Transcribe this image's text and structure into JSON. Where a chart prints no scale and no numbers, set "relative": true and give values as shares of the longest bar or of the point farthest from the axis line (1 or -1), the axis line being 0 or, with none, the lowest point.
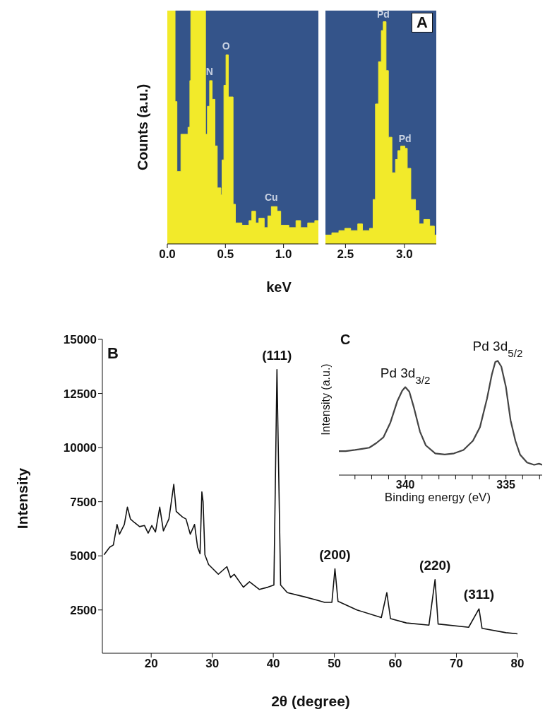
{
  "chart_data": [
    {
      "type": "area",
      "relative": true,
      "xlabel": "keV",
      "ylabel": "Counts (a.u.)",
      "xlim": [
        0,
        1.3
      ],
      "xticks": [
        {
          "value": 0,
          "label": "0.0"
        },
        {
          "value": 0.5,
          "label": "0.5"
        },
        {
          "value": 1,
          "label": "1.0"
        }
      ],
      "x": [
        0,
        0.067,
        0.067,
        0.083,
        0.083,
        0.117,
        0.117,
        0.178,
        0.178,
        0.194,
        0.194,
        0.202,
        0.202,
        0.329,
        0.329,
        0.345,
        0.345,
        0.364,
        0.364,
        0.386,
        0.386,
        0.41,
        0.41,
        0.43,
        0.43,
        0.461,
        0.461,
        0.471,
        0.471,
        0.487,
        0.487,
        0.505,
        0.505,
        0.525,
        0.525,
        0.566,
        0.566,
        0.586,
        0.586,
        0.642,
        0.642,
        0.703,
        0.703,
        0.727,
        0.727,
        0.76,
        0.76,
        0.788,
        0.788,
        0.834,
        0.834,
        0.865,
        0.865,
        0.895,
        0.895,
        0.945,
        0.945,
        0.976,
        0.976,
        1.046,
        1.046,
        1.107,
        1.107,
        1.147,
        1.147,
        1.208,
        1.208,
        1.269,
        1.269,
        1.3
      ],
      "series": [
        {
          "color": "#f2ea2a",
          "values": [
            1,
            1,
            0.61,
            0.61,
            0.31,
            0.31,
            0.47,
            0.47,
            0.5,
            0.5,
            0.7,
            0.7,
            1,
            1,
            0.47,
            0.47,
            0.59,
            0.59,
            0.7,
            0.7,
            0.62,
            0.62,
            0.42,
            0.42,
            0.24,
            0.24,
            0.21,
            0.21,
            0.36,
            0.36,
            0.68,
            0.68,
            0.81,
            0.81,
            0.63,
            0.63,
            0.17,
            0.17,
            0.09,
            0.09,
            0.08,
            0.08,
            0.1,
            0.1,
            0.14,
            0.14,
            0.09,
            0.09,
            0.11,
            0.11,
            0.07,
            0.07,
            0.12,
            0.12,
            0.16,
            0.16,
            0.14,
            0.14,
            0.08,
            0.08,
            0.07,
            0.07,
            0.1,
            0.1,
            0.07,
            0.07,
            0.09,
            0.09,
            0.1,
            0.1
          ]
        }
      ],
      "annotations": [
        {
          "text": "N",
          "x": 0.364,
          "y": 0.7
        },
        {
          "text": "O",
          "x": 0.505,
          "y": 0.81
        },
        {
          "text": "Cu",
          "x": 0.895,
          "y": 0.16
        }
      ]
    },
    {
      "type": "area",
      "relative": true,
      "xlim": [
        2.33,
        3.27
      ],
      "xticks": [
        {
          "value": 2.5,
          "label": "2.5"
        },
        {
          "value": 3,
          "label": "3.0"
        }
      ],
      "x": [
        2.33,
        2.384,
        2.384,
        2.444,
        2.444,
        2.494,
        2.494,
        2.544,
        2.544,
        2.604,
        2.604,
        2.644,
        2.644,
        2.704,
        2.704,
        2.734,
        2.734,
        2.754,
        2.754,
        2.78,
        2.78,
        2.804,
        2.804,
        2.82,
        2.82,
        2.844,
        2.844,
        2.864,
        2.864,
        2.894,
        2.894,
        2.924,
        2.924,
        2.944,
        2.944,
        2.968,
        2.968,
        3.004,
        3.004,
        3.024,
        3.024,
        3.054,
        3.054,
        3.094,
        3.094,
        3.124,
        3.124,
        3.164,
        3.164,
        3.214,
        3.214,
        3.254,
        3.254,
        3.27
      ],
      "series": [
        {
          "color": "#f2ea2a",
          "values": [
            0.04,
            0.04,
            0.05,
            0.05,
            0.06,
            0.06,
            0.07,
            0.07,
            0.06,
            0.06,
            0.09,
            0.09,
            0.06,
            0.06,
            0.07,
            0.07,
            0.2,
            0.2,
            0.63,
            0.63,
            0.82,
            0.82,
            0.96,
            0.96,
            1,
            1,
            0.78,
            0.78,
            0.48,
            0.48,
            0.32,
            0.32,
            0.38,
            0.38,
            0.42,
            0.42,
            0.44,
            0.44,
            0.43,
            0.43,
            0.34,
            0.34,
            0.2,
            0.2,
            0.15,
            0.15,
            0.09,
            0.09,
            0.11,
            0.11,
            0.08,
            0.08,
            0.04,
            0.04
          ]
        }
      ],
      "annotations": [
        "A",
        {
          "text": "Pd",
          "x": 2.82,
          "y": 1
        },
        {
          "text": "Pd",
          "x": 3.004,
          "y": 0.44
        }
      ]
    },
    {
      "type": "line",
      "xlabel": "2θ (degree)",
      "ylabel": "Intensity",
      "xlim": [
        12,
        80
      ],
      "xticks": [
        20,
        30,
        40,
        50,
        60,
        70,
        80
      ],
      "ylim": [
        500,
        15000
      ],
      "yticks": [
        2500,
        5000,
        7500,
        10000,
        12500,
        15000
      ],
      "x": [
        12.27,
        13.2,
        13.8,
        14.4,
        14.8,
        15.6,
        16.1,
        16.6,
        17.2,
        18.1,
        18.9,
        19.5,
        20.1,
        20.7,
        21.4,
        22.0,
        22.9,
        23.7,
        24.1,
        25.1,
        25.7,
        26.4,
        27.1,
        27.6,
        28.0,
        28.3,
        28.5,
        28.8,
        29.4,
        31.0,
        32.4,
        33.0,
        33.6,
        35.1,
        36.1,
        37.7,
        39.1,
        40.1,
        40.6,
        41.2,
        42.3,
        45.2,
        47.2,
        48.4,
        49.6,
        50.1,
        50.6,
        53.7,
        57.7,
        58.6,
        59.2,
        61.8,
        65.5,
        66.5,
        67.0,
        72.0,
        73.7,
        74.2,
        78.1,
        80
      ],
      "series": [
        {
          "color": "#111111",
          "values": [
            5050,
            5400,
            5500,
            6450,
            6000,
            6450,
            7250,
            6700,
            6550,
            6350,
            6400,
            6050,
            6400,
            6100,
            7250,
            6150,
            6700,
            8300,
            7050,
            6800,
            6700,
            6000,
            6450,
            5400,
            5100,
            7950,
            7500,
            5050,
            4600,
            4150,
            4500,
            4000,
            4150,
            3550,
            3800,
            3450,
            3550,
            3650,
            13600,
            3650,
            3300,
            3100,
            2950,
            2850,
            2850,
            4400,
            2900,
            2500,
            2150,
            3300,
            2100,
            1900,
            1800,
            3900,
            1850,
            1700,
            2550,
            1650,
            1450,
            1400
          ]
        }
      ],
      "annotations": [
        "B",
        {
          "text": "(111)",
          "x": 40.6,
          "y": 13600
        },
        {
          "text": "(200)",
          "x": 50.1,
          "y": 4400
        },
        {
          "text": "(220)",
          "x": 66.5,
          "y": 3900
        },
        {
          "text": "(311)",
          "x": 73.7,
          "y": 2550
        }
      ]
    },
    {
      "type": "line",
      "relative": true,
      "xlabel": "Binding energy (eV)",
      "ylabel": "Intensity (a.u.)",
      "xlim": [
        343.3,
        333.2
      ],
      "xticks": [
        {
          "value": 342.5,
          "label": null
        },
        {
          "value": 341.67,
          "label": null
        },
        {
          "value": 340.83,
          "label": null
        },
        340,
        {
          "value": 339.17,
          "label": null
        },
        {
          "value": 338.33,
          "label": null
        },
        {
          "value": 337.5,
          "label": null
        },
        {
          "value": 336.67,
          "label": null
        },
        {
          "value": 335.83,
          "label": null
        },
        335,
        {
          "value": 334.17,
          "label": null
        },
        {
          "value": 333.33,
          "label": null
        }
      ],
      "x": [
        343.3,
        342.96,
        342.5,
        342.14,
        341.79,
        341.44,
        341.09,
        340.74,
        340.39,
        340.15,
        340,
        339.8,
        339.57,
        339.27,
        338.98,
        338.51,
        338.04,
        337.58,
        337.11,
        336.64,
        336.29,
        335.94,
        335.7,
        335.53,
        335.41,
        335.23,
        335,
        334.77,
        334.53,
        334.3,
        333.95,
        333.6,
        333.36,
        333.2
      ],
      "series": [
        {
          "color": "#444444",
          "values": [
            0.21,
            0.21,
            0.22,
            0.23,
            0.24,
            0.28,
            0.33,
            0.46,
            0.65,
            0.74,
            0.77,
            0.73,
            0.59,
            0.38,
            0.26,
            0.19,
            0.18,
            0.19,
            0.22,
            0.3,
            0.42,
            0.67,
            0.88,
            0.99,
            1,
            0.95,
            0.77,
            0.48,
            0.3,
            0.18,
            0.11,
            0.09,
            0.1,
            0.09
          ]
        }
      ],
      "annotations": [
        "C",
        {
          "text": "Pd 3d$_{3/2}$",
          "x": 340,
          "y": 0.77
        },
        {
          "text": "Pd 3d$_{5/2}$",
          "x": 335.41,
          "y": 1
        }
      ]
    }
  ]
}
